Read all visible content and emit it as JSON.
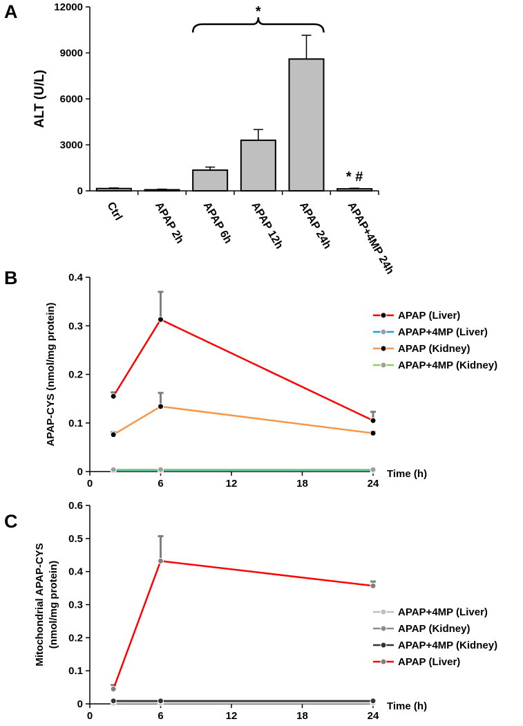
{
  "chart_data": [
    {
      "panel": "A",
      "type": "bar",
      "ylabel": "ALT (U/L)",
      "xlabel": "",
      "ylim": [
        0,
        12000
      ],
      "yticks": [
        "0",
        "3000",
        "6000",
        "9000",
        "12000"
      ],
      "categories": [
        "Ctrl",
        "APAP 2h",
        "APAP 6h",
        "APAP 12h",
        "APAP 24h",
        "APAP+4MP 24h"
      ],
      "values": [
        150,
        70,
        1350,
        3300,
        8600,
        130
      ],
      "errors": [
        40,
        40,
        200,
        700,
        1550,
        40
      ],
      "annotations": {
        "bracket_star": "*",
        "last_bar_marks": "* #"
      }
    },
    {
      "panel": "B",
      "type": "line",
      "ylabel": "APAP-CYS (nmol/mg protein)",
      "xlabel": "Time (h)",
      "xlim": [
        0,
        24
      ],
      "ylim": [
        0,
        0.4
      ],
      "xticks": [
        "0",
        "6",
        "12",
        "18",
        "24"
      ],
      "yticks": [
        "0",
        "0.1",
        "0.2",
        "0.3",
        "0.4"
      ],
      "x": [
        2,
        6,
        24
      ],
      "series": [
        {
          "name": "APAP (Liver)",
          "values": [
            0.155,
            0.313,
            0.105
          ],
          "errors": [
            0.008,
            0.057,
            0.018
          ],
          "color": "#ff0000",
          "marker": "#000000"
        },
        {
          "name": "APAP+4MP (Liver)",
          "values": [
            0.002,
            0.002,
            0.002
          ],
          "errors": [
            0,
            0,
            0
          ],
          "color": "#1ba1e2",
          "marker": "#9e9e9e"
        },
        {
          "name": "APAP (Kidney)",
          "values": [
            0.076,
            0.134,
            0.079
          ],
          "errors": [
            0.005,
            0.028,
            0.003
          ],
          "color": "#f79646",
          "marker": "#000000"
        },
        {
          "name": "APAP+4MP (Kidney)",
          "values": [
            0.004,
            0.004,
            0.004
          ],
          "errors": [
            0,
            0,
            0
          ],
          "color": "#92d050",
          "marker": "#9e9e9e"
        }
      ]
    },
    {
      "panel": "C",
      "type": "line",
      "ylabel_line1": "Mitochondrial APAP-CYS",
      "ylabel_line2": "(nmol/mg protein)",
      "xlabel": "Time (h)",
      "xlim": [
        0,
        24
      ],
      "ylim": [
        0,
        0.6
      ],
      "xticks": [
        "0",
        "6",
        "12",
        "18",
        "24"
      ],
      "yticks": [
        "0",
        "0.1",
        "0.2",
        "0.3",
        "0.4",
        "0.5",
        "0.6"
      ],
      "x": [
        2,
        6,
        24
      ],
      "series": [
        {
          "name": "APAP+4MP (Liver)",
          "values": [
            0.002,
            0.002,
            0.002
          ],
          "errors": [
            0,
            0,
            0
          ],
          "color": "#c0c0c0",
          "marker": "#c0c0c0"
        },
        {
          "name": "APAP (Kidney)",
          "values": [
            0.008,
            0.008,
            0.008
          ],
          "errors": [
            0,
            0,
            0
          ],
          "color": "#8c8c8c",
          "marker": "#8c8c8c"
        },
        {
          "name": "APAP+4MP (Kidney)",
          "values": [
            0.009,
            0.009,
            0.009
          ],
          "errors": [
            0,
            0,
            0
          ],
          "color": "#333333",
          "marker": "#333333"
        },
        {
          "name": "APAP (Liver)",
          "values": [
            0.045,
            0.432,
            0.357
          ],
          "errors": [
            0.012,
            0.075,
            0.013
          ],
          "color": "#ff0000",
          "marker": "#7f7f7f"
        }
      ]
    }
  ]
}
